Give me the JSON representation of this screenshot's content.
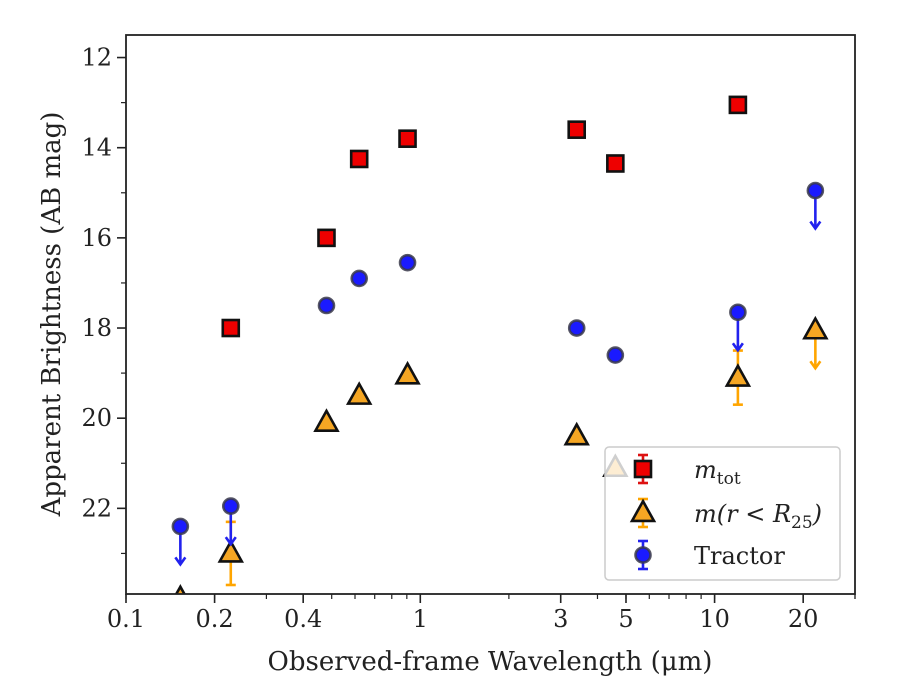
{
  "chart_data": {
    "type": "scatter",
    "xlabel": "Observed-frame Wavelength (μm)",
    "ylabel": "Apparent Brightness (AB mag)",
    "xscale": "log",
    "xlim": [
      0.1,
      30
    ],
    "ylim": [
      23.9,
      11.5
    ],
    "y_inverted": true,
    "xticks": [
      {
        "value": 0.1,
        "label": "0.1"
      },
      {
        "value": 0.2,
        "label": "0.2"
      },
      {
        "value": 0.4,
        "label": "0.4"
      },
      {
        "value": 1,
        "label": "1"
      },
      {
        "value": 3,
        "label": "3"
      },
      {
        "value": 5,
        "label": "5"
      },
      {
        "value": 10,
        "label": "10"
      },
      {
        "value": 20,
        "label": "20"
      }
    ],
    "yticks": [
      {
        "value": 12,
        "label": "12"
      },
      {
        "value": 14,
        "label": "14"
      },
      {
        "value": 16,
        "label": "16"
      },
      {
        "value": 18,
        "label": "18"
      },
      {
        "value": 20,
        "label": "20"
      },
      {
        "value": 22,
        "label": "22"
      }
    ],
    "grid": false,
    "legend_position": "lower-right",
    "series": [
      {
        "key": "mtot",
        "legend_main": "m",
        "legend_sub": "tot",
        "marker": "square",
        "face_color": "#ee0000",
        "error_color": "#dd1111",
        "points": [
          {
            "x": 0.227,
            "y": 18.0
          },
          {
            "x": 0.48,
            "y": 16.0
          },
          {
            "x": 0.62,
            "y": 14.25
          },
          {
            "x": 0.905,
            "y": 13.8
          },
          {
            "x": 3.4,
            "y": 13.6
          },
          {
            "x": 4.6,
            "y": 14.35
          },
          {
            "x": 12.0,
            "y": 13.05
          }
        ]
      },
      {
        "key": "mr25",
        "legend_main": "m(r < R",
        "legend_sub": "25",
        "legend_tail": ")",
        "marker": "triangle",
        "face_color": "#f5a623",
        "error_color": "#ffa500",
        "points": [
          {
            "x": 0.153,
            "y": 24.0
          },
          {
            "x": 0.227,
            "y": 23.0,
            "err_low": 0.7,
            "err_high": 0.7
          },
          {
            "x": 0.48,
            "y": 20.1
          },
          {
            "x": 0.62,
            "y": 19.5
          },
          {
            "x": 0.905,
            "y": 19.05
          },
          {
            "x": 3.4,
            "y": 20.4
          },
          {
            "x": 4.6,
            "y": 21.1
          },
          {
            "x": 12.0,
            "y": 19.1,
            "err_low": 0.6,
            "err_high": 0.6
          },
          {
            "x": 22.0,
            "y": 18.05,
            "upper_limit": true
          }
        ]
      },
      {
        "key": "tractor",
        "legend_main": "Tractor",
        "marker": "circle",
        "face_color": "#1a1aff",
        "error_color": "#2222ee",
        "points": [
          {
            "x": 0.153,
            "y": 22.4,
            "upper_limit": true
          },
          {
            "x": 0.227,
            "y": 21.95,
            "upper_limit": true
          },
          {
            "x": 0.48,
            "y": 17.5
          },
          {
            "x": 0.62,
            "y": 16.9
          },
          {
            "x": 0.905,
            "y": 16.55
          },
          {
            "x": 3.4,
            "y": 18.0
          },
          {
            "x": 4.6,
            "y": 18.6
          },
          {
            "x": 12.0,
            "y": 17.65,
            "upper_limit": true
          },
          {
            "x": 22.0,
            "y": 14.95,
            "upper_limit": true
          }
        ]
      }
    ]
  }
}
